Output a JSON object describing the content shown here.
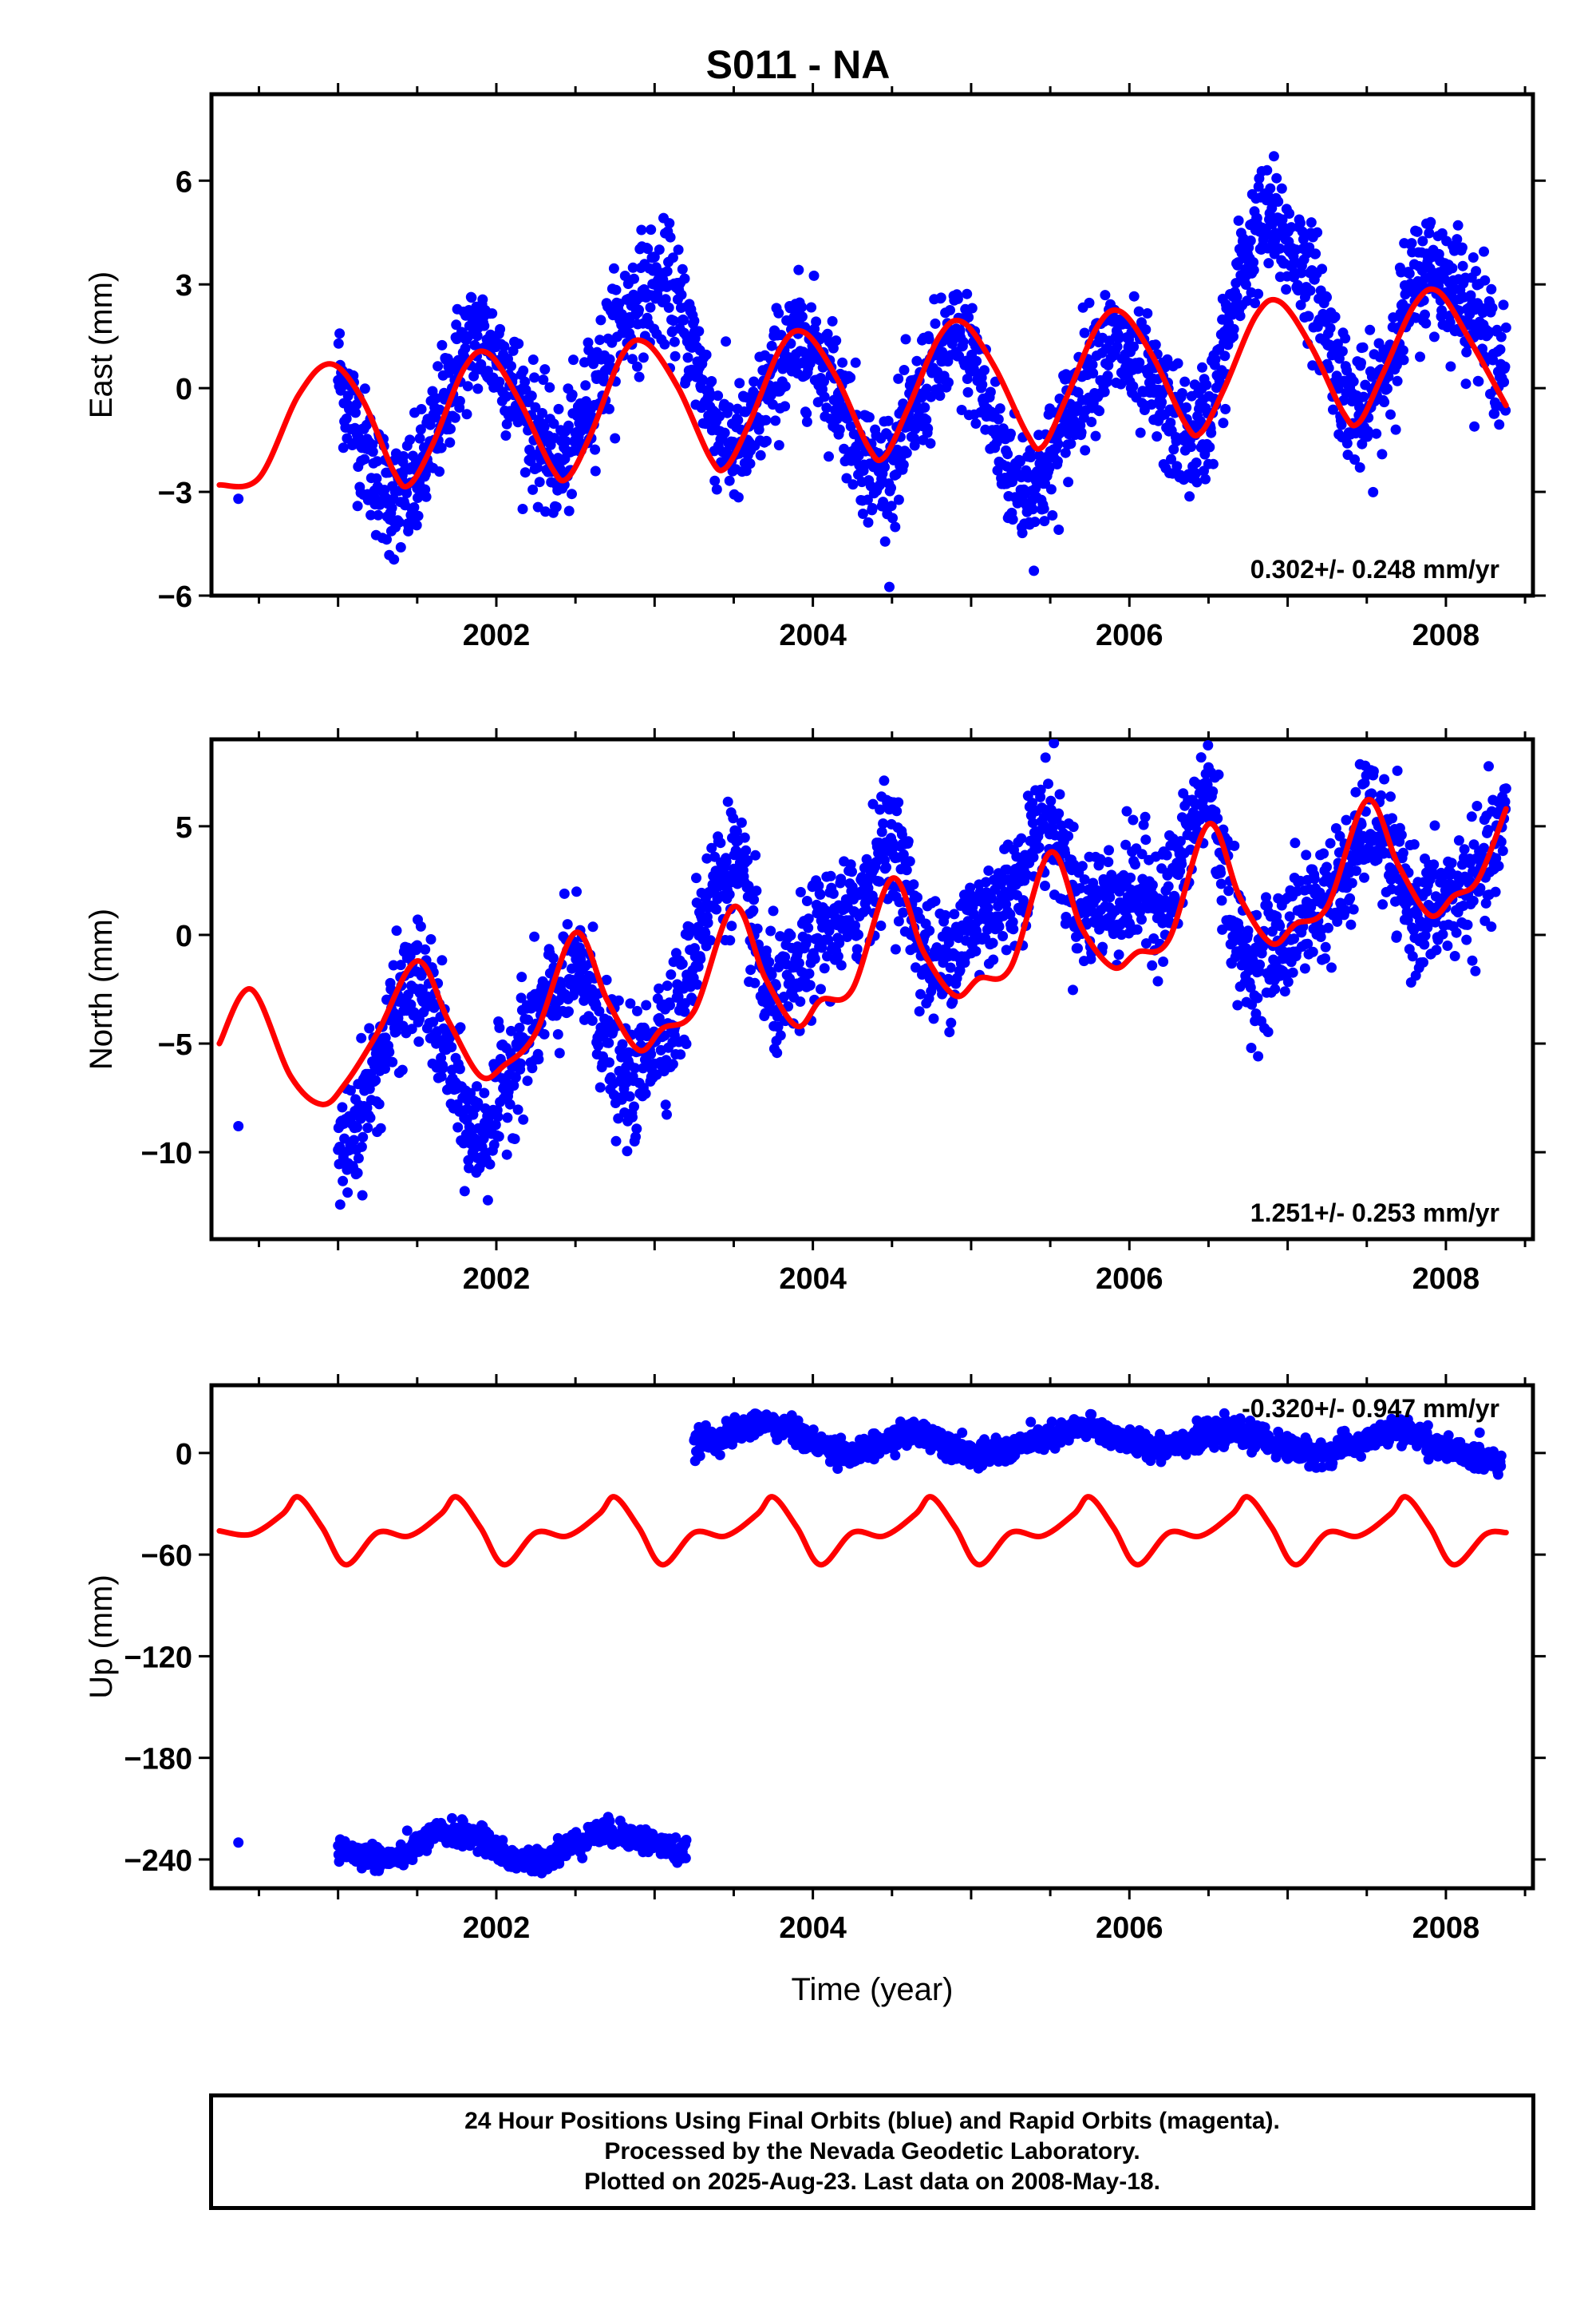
{
  "title": "S011 - NA",
  "colors": {
    "points": "#0000ff",
    "model": "#ff0000",
    "frame": "#000000"
  },
  "footer": {
    "line1": "24 Hour Positions Using Final Orbits (blue) and Rapid Orbits (magenta).",
    "line2": "Processed by the Nevada Geodetic Laboratory.",
    "line3": "Plotted on 2025-Aug-23. Last data on 2008-May-18."
  },
  "chart_data": [
    {
      "type": "scatter",
      "ylabel": "East (mm)",
      "xlabel": "",
      "xlim": [
        2000.2,
        2008.55
      ],
      "ylim": [
        -6,
        8.5
      ],
      "x_ticks": [
        2002,
        2004,
        2006,
        2008
      ],
      "y_ticks": [
        6,
        3,
        0,
        -3,
        -6
      ],
      "y_tick_labels": [
        "6",
        "3",
        "0",
        "−3",
        "−6"
      ],
      "rate_label": "0.302+/- 0.248 mm/yr",
      "data_start": 2001.0,
      "data_end": 2008.38,
      "series": [
        {
          "kind": "points",
          "x": [
            2000.37,
            2001.0,
            2001.1,
            2001.2,
            2001.3,
            2001.4,
            2001.5,
            2001.6,
            2001.7,
            2001.8,
            2001.9,
            2002.0,
            2002.1,
            2002.2,
            2002.3,
            2002.4,
            2002.5,
            2002.6,
            2002.7,
            2002.8,
            2002.9,
            2003.0,
            2003.1,
            2003.2,
            2003.3,
            2003.4,
            2003.5,
            2003.6,
            2003.7,
            2003.8,
            2003.9,
            2004.0,
            2004.1,
            2004.2,
            2004.3,
            2004.4,
            2004.5,
            2004.6,
            2004.7,
            2004.8,
            2004.9,
            2005.0,
            2005.1,
            2005.2,
            2005.3,
            2005.4,
            2005.5,
            2005.6,
            2005.7,
            2005.8,
            2005.9,
            2006.0,
            2006.1,
            2006.2,
            2006.3,
            2006.4,
            2006.5,
            2006.6,
            2006.7,
            2006.8,
            2006.9,
            2007.0,
            2007.1,
            2007.2,
            2007.3,
            2007.4,
            2007.5,
            2007.6,
            2007.7,
            2007.8,
            2007.9,
            2008.0,
            2008.1,
            2008.2,
            2008.3,
            2008.38
          ],
          "y": [
            -3.2,
            0.5,
            -0.8,
            -2.2,
            -3.0,
            -3.3,
            -2.8,
            -1.5,
            0.0,
            1.2,
            1.5,
            1.0,
            0.2,
            -0.8,
            -1.8,
            -2.2,
            -1.5,
            -0.2,
            1.0,
            2.0,
            2.6,
            3.0,
            2.8,
            1.8,
            0.3,
            -1.2,
            -1.8,
            -1.5,
            -0.3,
            0.8,
            1.3,
            1.2,
            0.5,
            -0.5,
            -1.7,
            -2.5,
            -2.2,
            -1.2,
            0.0,
            0.8,
            1.3,
            1.0,
            -0.5,
            -2.0,
            -2.8,
            -2.8,
            -2.2,
            -1.0,
            0.2,
            1.0,
            1.2,
            0.8,
            0.2,
            -0.5,
            -1.2,
            -1.5,
            -0.8,
            1.0,
            3.2,
            4.5,
            4.8,
            4.2,
            3.5,
            2.5,
            0.8,
            -0.5,
            -0.8,
            0.2,
            1.8,
            3.0,
            3.5,
            3.2,
            2.8,
            2.0,
            1.2,
            0.3
          ]
        },
        {
          "kind": "model",
          "x": [
            2000.25,
            2000.5,
            2000.75,
            2000.95,
            2001.15,
            2001.35,
            2001.45,
            2001.6,
            2001.8,
            2001.95,
            2002.15,
            2002.35,
            2002.45,
            2002.6,
            2002.8,
            2002.95,
            2003.15,
            2003.35,
            2003.45,
            2003.6,
            2003.8,
            2003.95,
            2004.15,
            2004.35,
            2004.45,
            2004.6,
            2004.8,
            2004.95,
            2005.15,
            2005.35,
            2005.45,
            2005.6,
            2005.8,
            2005.95,
            2006.15,
            2006.35,
            2006.45,
            2006.6,
            2006.8,
            2006.95,
            2007.15,
            2007.35,
            2007.45,
            2007.6,
            2007.8,
            2007.95,
            2008.15,
            2008.38
          ],
          "y": [
            -2.8,
            -2.6,
            -0.2,
            0.7,
            -0.3,
            -2.4,
            -2.8,
            -1.6,
            0.6,
            1.0,
            -0.4,
            -2.3,
            -2.6,
            -1.3,
            1.0,
            1.3,
            0.0,
            -2.0,
            -2.3,
            -1.0,
            1.2,
            1.6,
            0.3,
            -1.7,
            -2.0,
            -0.6,
            1.5,
            1.9,
            0.6,
            -1.3,
            -1.7,
            -0.3,
            1.8,
            2.2,
            0.9,
            -1.0,
            -1.3,
            0.0,
            2.1,
            2.5,
            1.2,
            -0.7,
            -1.0,
            0.4,
            2.4,
            2.8,
            1.4,
            -0.5
          ]
        }
      ]
    },
    {
      "type": "scatter",
      "ylabel": "North (mm)",
      "xlabel": "",
      "xlim": [
        2000.2,
        2008.55
      ],
      "ylim": [
        -14,
        9
      ],
      "x_ticks": [
        2002,
        2004,
        2006,
        2008
      ],
      "y_ticks": [
        5,
        0,
        -5,
        -10
      ],
      "y_tick_labels": [
        "5",
        "0",
        "−5",
        "−10"
      ],
      "rate_label": "1.251+/- 0.253 mm/yr",
      "data_start": 2001.0,
      "data_end": 2008.38,
      "series": [
        {
          "kind": "points",
          "x": [
            2000.37,
            2001.0,
            2001.1,
            2001.2,
            2001.3,
            2001.4,
            2001.5,
            2001.6,
            2001.7,
            2001.8,
            2001.9,
            2002.0,
            2002.1,
            2002.2,
            2002.3,
            2002.4,
            2002.5,
            2002.6,
            2002.7,
            2002.8,
            2002.9,
            2003.0,
            2003.1,
            2003.2,
            2003.3,
            2003.4,
            2003.5,
            2003.6,
            2003.7,
            2003.8,
            2003.9,
            2004.0,
            2004.1,
            2004.2,
            2004.3,
            2004.4,
            2004.5,
            2004.6,
            2004.7,
            2004.8,
            2004.9,
            2005.0,
            2005.1,
            2005.2,
            2005.3,
            2005.4,
            2005.5,
            2005.6,
            2005.7,
            2005.8,
            2005.9,
            2006.0,
            2006.1,
            2006.2,
            2006.3,
            2006.4,
            2006.5,
            2006.6,
            2006.7,
            2006.8,
            2006.9,
            2007.0,
            2007.1,
            2007.2,
            2007.3,
            2007.4,
            2007.5,
            2007.6,
            2007.7,
            2007.8,
            2007.9,
            2008.0,
            2008.1,
            2008.2,
            2008.3,
            2008.38
          ],
          "y": [
            -8.8,
            -10.5,
            -9.0,
            -7.0,
            -5.0,
            -3.0,
            -2.0,
            -3.5,
            -6.0,
            -8.5,
            -9.5,
            -8.0,
            -6.0,
            -4.5,
            -3.5,
            -2.5,
            -1.5,
            -2.5,
            -5.0,
            -7.0,
            -6.5,
            -4.5,
            -4.0,
            -2.5,
            1.0,
            2.5,
            3.5,
            1.0,
            -2.5,
            -3.0,
            -2.0,
            -0.5,
            0.5,
            0.5,
            1.5,
            3.5,
            4.5,
            2.0,
            -1.0,
            -1.5,
            -0.5,
            0.5,
            1.0,
            1.5,
            2.5,
            4.5,
            5.5,
            3.0,
            1.0,
            1.5,
            1.5,
            2.0,
            2.0,
            1.5,
            2.5,
            5.0,
            7.0,
            3.0,
            -1.0,
            -1.5,
            -1.0,
            0.0,
            1.0,
            1.5,
            2.0,
            3.0,
            5.5,
            4.5,
            2.5,
            1.0,
            1.0,
            1.5,
            2.0,
            2.5,
            3.5,
            5.5
          ]
        },
        {
          "kind": "model",
          "x": [
            2000.25,
            2000.45,
            2000.7,
            2000.9,
            2001.05,
            2001.25,
            2001.5,
            2001.7,
            2001.9,
            2002.05,
            2002.25,
            2002.5,
            2002.7,
            2002.9,
            2003.05,
            2003.25,
            2003.5,
            2003.7,
            2003.9,
            2004.05,
            2004.25,
            2004.5,
            2004.7,
            2004.9,
            2005.05,
            2005.25,
            2005.5,
            2005.7,
            2005.9,
            2006.05,
            2006.25,
            2006.5,
            2006.7,
            2006.9,
            2007.05,
            2007.25,
            2007.5,
            2007.7,
            2007.9,
            2008.05,
            2008.2,
            2008.38
          ],
          "y": [
            -5.0,
            -2.5,
            -6.5,
            -7.8,
            -6.8,
            -4.5,
            -1.2,
            -4.0,
            -6.5,
            -6.0,
            -4.5,
            0.1,
            -3.0,
            -5.3,
            -4.3,
            -3.5,
            1.3,
            -2.0,
            -4.2,
            -3.0,
            -2.5,
            2.6,
            -0.8,
            -2.8,
            -2.0,
            -1.5,
            3.8,
            0.3,
            -1.5,
            -0.8,
            -0.2,
            5.1,
            1.7,
            -0.4,
            0.5,
            1.3,
            6.2,
            3.2,
            0.9,
            1.8,
            2.5,
            5.8
          ]
        }
      ]
    },
    {
      "type": "scatter",
      "ylabel": "Up (mm)",
      "xlabel": "Time (year)",
      "xlim": [
        2000.2,
        2008.55
      ],
      "ylim": [
        -257,
        40
      ],
      "x_ticks": [
        2002,
        2004,
        2006,
        2008
      ],
      "y_ticks": [
        0,
        -60,
        -120,
        -180,
        -240
      ],
      "y_tick_labels": [
        "0",
        "−60",
        "−120",
        "−180",
        "−240"
      ],
      "rate_label": "-0.320+/- 0.947 mm/yr",
      "data_start": 2001.0,
      "data_end": 2008.38,
      "series": [
        {
          "kind": "points",
          "x": [
            2000.37,
            2001.0,
            2001.1,
            2001.2,
            2001.3,
            2001.4,
            2001.5,
            2001.6,
            2001.7,
            2001.8,
            2001.9,
            2002.0,
            2002.1,
            2002.2,
            2002.3,
            2002.4,
            2002.5,
            2002.6,
            2002.7,
            2002.8,
            2002.9,
            2003.0,
            2003.1,
            2003.2
          ],
          "y": [
            -230,
            -234,
            -236,
            -238,
            -240,
            -238,
            -232,
            -226,
            -224,
            -225,
            -228,
            -234,
            -240,
            -242,
            -240,
            -235,
            -230,
            -226,
            -224,
            -225,
            -228,
            -230,
            -234,
            -236
          ]
        },
        {
          "kind": "points",
          "x": [
            2003.25,
            2003.35,
            2003.45,
            2003.55,
            2003.65,
            2003.75,
            2003.85,
            2003.95,
            2004.05,
            2004.15,
            2004.25,
            2004.35,
            2004.45,
            2004.55,
            2004.65,
            2004.75,
            2004.85,
            2004.95,
            2005.05,
            2005.15,
            2005.25,
            2005.35,
            2005.45,
            2005.55,
            2005.65,
            2005.75,
            2005.85,
            2005.95,
            2006.05,
            2006.15,
            2006.25,
            2006.35,
            2006.45,
            2006.55,
            2006.65,
            2006.75,
            2006.85,
            2006.95,
            2007.05,
            2007.15,
            2007.25,
            2007.35,
            2007.45,
            2007.55,
            2007.65,
            2007.75,
            2007.85,
            2007.95,
            2008.05,
            2008.15,
            2008.25,
            2008.35
          ],
          "y": [
            6,
            8,
            10,
            14,
            18,
            17,
            14,
            8,
            5,
            2,
            0,
            2,
            6,
            10,
            12,
            10,
            6,
            2,
            -2,
            0,
            2,
            6,
            8,
            10,
            14,
            15,
            12,
            8,
            6,
            4,
            5,
            7,
            9,
            11,
            13,
            11,
            8,
            4,
            2,
            0,
            0,
            3,
            6,
            9,
            13,
            12,
            9,
            4,
            1,
            -2,
            -4,
            -3
          ]
        },
        {
          "kind": "model",
          "x": [
            2000.25,
            2000.45,
            2000.65,
            2000.75,
            2000.9,
            2001.05,
            2001.25,
            2001.45,
            2001.65,
            2001.75,
            2001.9,
            2002.05,
            2002.25,
            2002.45,
            2002.65,
            2002.75,
            2002.9,
            2003.05,
            2003.25,
            2003.45,
            2003.65,
            2003.75,
            2003.9,
            2004.05,
            2004.25,
            2004.45,
            2004.65,
            2004.75,
            2004.9,
            2005.05,
            2005.25,
            2005.45,
            2005.65,
            2005.75,
            2005.9,
            2006.05,
            2006.25,
            2006.45,
            2006.65,
            2006.75,
            2006.9,
            2007.05,
            2007.25,
            2007.45,
            2007.65,
            2007.75,
            2007.9,
            2008.05,
            2008.25,
            2008.38
          ],
          "y": [
            -46,
            -48,
            -36,
            -26,
            -44,
            -66,
            -47,
            -49,
            -36,
            -26,
            -44,
            -66,
            -47,
            -49,
            -36,
            -26,
            -44,
            -66,
            -47,
            -49,
            -36,
            -26,
            -44,
            -66,
            -47,
            -49,
            -36,
            -26,
            -44,
            -66,
            -47,
            -49,
            -36,
            -26,
            -44,
            -66,
            -47,
            -49,
            -36,
            -26,
            -44,
            -66,
            -47,
            -49,
            -36,
            -26,
            -44,
            -66,
            -48,
            -47
          ]
        }
      ]
    }
  ]
}
